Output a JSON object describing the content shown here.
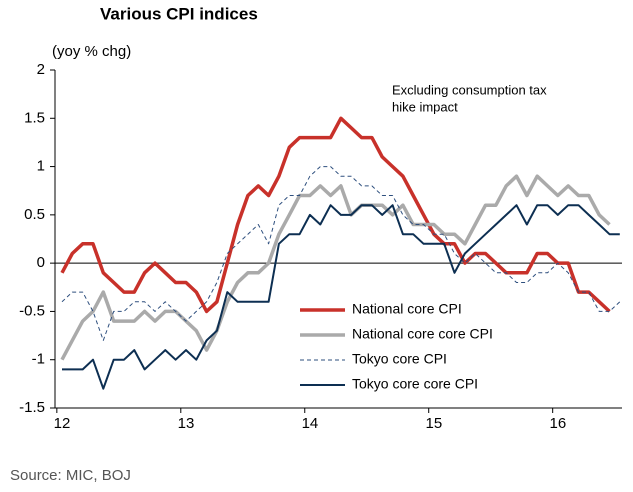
{
  "chart_data": {
    "type": "line",
    "title": "Various CPI indices",
    "y_label": "(yoy % chg)",
    "annotation": [
      "Excluding consumption tax",
      "hike impact"
    ],
    "source": "Source: MIC, BOJ",
    "categories": [
      "12",
      null,
      null,
      null,
      null,
      null,
      null,
      null,
      null,
      null,
      null,
      null,
      "13",
      null,
      null,
      null,
      null,
      null,
      null,
      null,
      null,
      null,
      null,
      null,
      "14",
      null,
      null,
      null,
      null,
      null,
      null,
      null,
      null,
      null,
      null,
      null,
      "15",
      null,
      null,
      null,
      null,
      null,
      null,
      null,
      null,
      null,
      null,
      null,
      "16",
      null,
      null,
      null,
      null,
      null,
      null
    ],
    "ylim": [
      -1.5,
      2
    ],
    "yticks": [
      -1.5,
      -1,
      -0.5,
      0,
      0.5,
      1,
      1.5,
      2
    ],
    "series": [
      {
        "name": "National core CPI",
        "color": "#c8312a",
        "width": 3.5,
        "dash": "none",
        "values": [
          -0.1,
          0.1,
          0.2,
          0.2,
          -0.1,
          -0.2,
          -0.3,
          -0.3,
          -0.1,
          0.0,
          -0.1,
          -0.2,
          -0.2,
          -0.3,
          -0.5,
          -0.4,
          0.0,
          0.4,
          0.7,
          0.8,
          0.7,
          0.9,
          1.2,
          1.3,
          1.3,
          1.3,
          1.3,
          1.5,
          1.4,
          1.3,
          1.3,
          1.1,
          1.0,
          0.9,
          0.7,
          0.5,
          0.3,
          0.2,
          0.2,
          0.0,
          0.1,
          0.1,
          0.0,
          -0.1,
          -0.1,
          -0.1,
          0.1,
          0.1,
          0.0,
          0.0,
          -0.3,
          -0.3,
          -0.4,
          -0.5,
          null
        ]
      },
      {
        "name": "National core core CPI",
        "color": "#aaaaaa",
        "width": 3.5,
        "dash": "none",
        "values": [
          -1.0,
          -0.8,
          -0.6,
          -0.5,
          -0.3,
          -0.6,
          -0.6,
          -0.6,
          -0.5,
          -0.6,
          -0.5,
          -0.5,
          -0.6,
          -0.7,
          -0.9,
          -0.7,
          -0.4,
          -0.2,
          -0.1,
          -0.1,
          0.0,
          0.3,
          0.5,
          0.7,
          0.7,
          0.8,
          0.7,
          0.8,
          0.5,
          0.6,
          0.6,
          0.6,
          0.5,
          0.6,
          0.4,
          0.4,
          0.4,
          0.3,
          0.3,
          0.2,
          0.4,
          0.6,
          0.6,
          0.8,
          0.9,
          0.7,
          0.9,
          0.8,
          0.7,
          0.8,
          0.7,
          0.7,
          0.5,
          0.4,
          null
        ]
      },
      {
        "name": "Tokyo core CPI",
        "color": "#2e4f7e",
        "width": 1,
        "dash": "4 3",
        "values": [
          -0.4,
          -0.3,
          -0.3,
          -0.5,
          -0.8,
          -0.5,
          -0.5,
          -0.4,
          -0.4,
          -0.5,
          -0.4,
          -0.5,
          -0.6,
          -0.5,
          -0.4,
          -0.2,
          0.1,
          0.2,
          0.3,
          0.4,
          0.2,
          0.6,
          0.7,
          0.7,
          0.9,
          1.0,
          1.0,
          0.9,
          0.9,
          0.8,
          0.8,
          0.7,
          0.7,
          0.5,
          0.4,
          0.4,
          0.3,
          0.3,
          0.1,
          0.0,
          0.1,
          0.0,
          -0.1,
          -0.1,
          -0.2,
          -0.2,
          -0.1,
          -0.1,
          0.0,
          -0.1,
          -0.3,
          -0.3,
          -0.5,
          -0.5,
          -0.4
        ]
      },
      {
        "name": "Tokyo core core CPI",
        "color": "#0d2f52",
        "width": 2,
        "dash": "none",
        "values": [
          -1.1,
          -1.1,
          -1.1,
          -1.0,
          -1.3,
          -1.0,
          -1.0,
          -0.9,
          -1.1,
          -1.0,
          -0.9,
          -1.0,
          -0.9,
          -1.0,
          -0.8,
          -0.7,
          -0.3,
          -0.4,
          -0.4,
          -0.4,
          -0.4,
          0.2,
          0.3,
          0.3,
          0.5,
          0.4,
          0.6,
          0.5,
          0.5,
          0.6,
          0.6,
          0.5,
          0.6,
          0.3,
          0.3,
          0.2,
          0.2,
          0.2,
          -0.1,
          0.1,
          0.2,
          0.3,
          0.4,
          0.5,
          0.6,
          0.4,
          0.6,
          0.6,
          0.5,
          0.6,
          0.6,
          0.5,
          0.4,
          0.3,
          0.3
        ]
      }
    ]
  }
}
